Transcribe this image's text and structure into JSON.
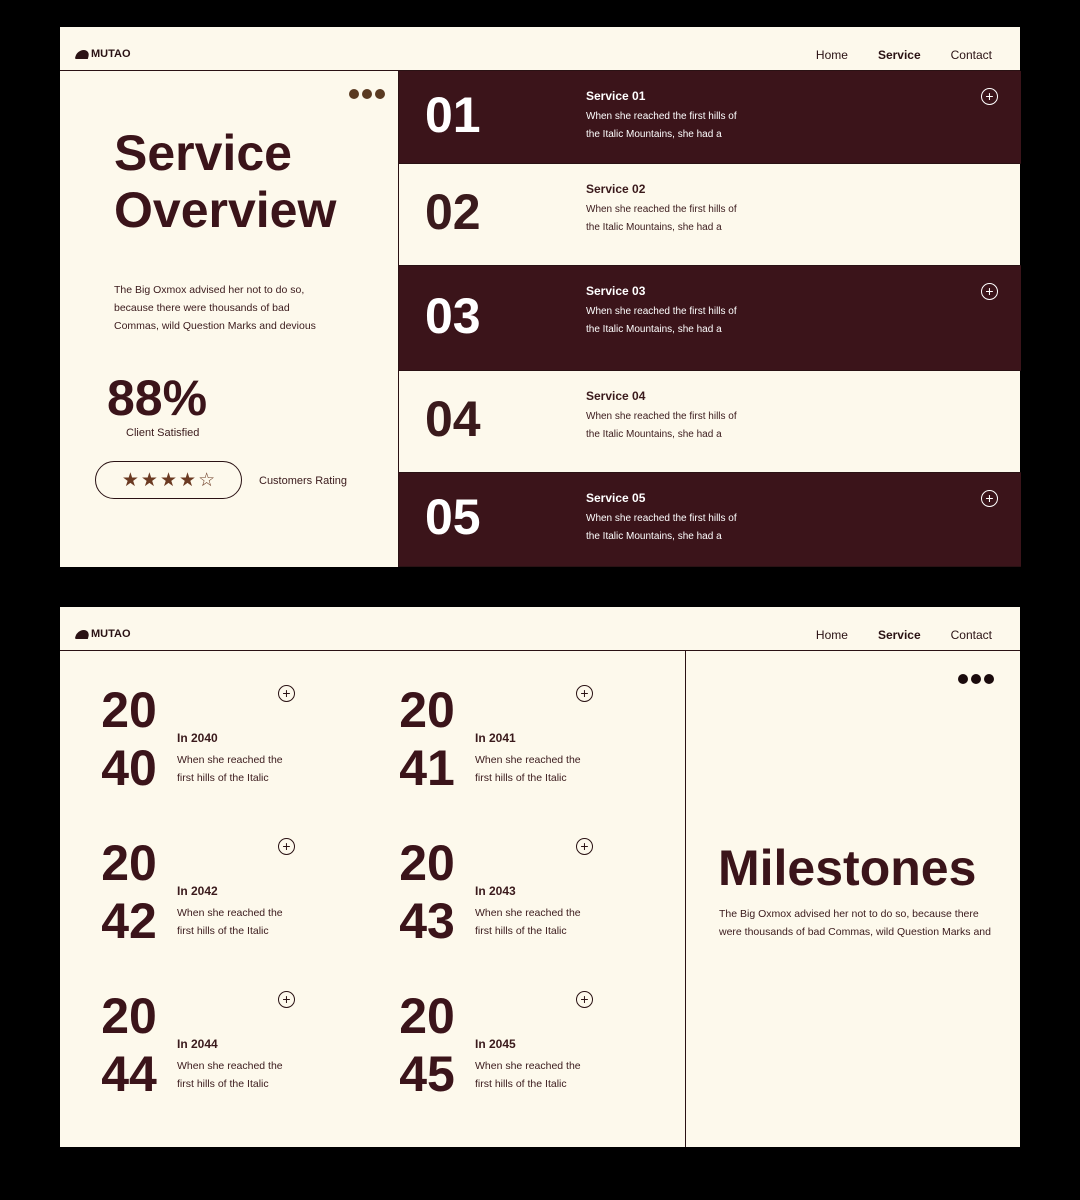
{
  "brand": "MUTAO",
  "nav": {
    "home": "Home",
    "service": "Service",
    "contact": "Contact",
    "active": "Service"
  },
  "colors": {
    "background": "#fdf9ec",
    "dark": "#3b141a",
    "star": "#6b3a22"
  },
  "overview": {
    "title_line1": "Service",
    "title_line2": "Overview",
    "desc_lines": [
      "The Big Oxmox advised her not to do so,",
      "because there were thousands of bad",
      "Commas, wild Question Marks and devious"
    ],
    "stat": "88%",
    "stat_label": "Client Satisfied",
    "rating": {
      "value": 4,
      "max": 5,
      "label": "Customers Rating"
    }
  },
  "services": [
    {
      "num": "01",
      "title": "Service 01",
      "line1": "When she reached the first hills of",
      "line2": "the Italic Mountains, she had a",
      "dark": true
    },
    {
      "num": "02",
      "title": "Service 02",
      "line1": "When she reached the first hills of",
      "line2": "the Italic Mountains, she had a",
      "dark": false
    },
    {
      "num": "03",
      "title": "Service 03",
      "line1": "When she reached the first hills of",
      "line2": "the Italic Mountains, she had a",
      "dark": true
    },
    {
      "num": "04",
      "title": "Service 04",
      "line1": "When she reached the first hills of",
      "line2": "the Italic Mountains, she had a",
      "dark": false
    },
    {
      "num": "05",
      "title": "Service 05",
      "line1": "When she reached the first hills of",
      "line2": "the Italic Mountains, she had a",
      "dark": true
    }
  ],
  "milestones": {
    "title": "Milestones",
    "desc_lines": [
      "The Big Oxmox advised her not to do so, because there",
      "were thousands of bad Commas, wild Question Marks and"
    ],
    "items": [
      {
        "y1": "20",
        "y2": "40",
        "title": "In 2040",
        "line1": "When she reached the",
        "line2": "first hills of the Italic"
      },
      {
        "y1": "20",
        "y2": "41",
        "title": "In 2041",
        "line1": "When she reached the",
        "line2": "first hills of the Italic"
      },
      {
        "y1": "20",
        "y2": "42",
        "title": "In 2042",
        "line1": "When she reached the",
        "line2": "first hills of the Italic"
      },
      {
        "y1": "20",
        "y2": "43",
        "title": "In 2043",
        "line1": "When she reached the",
        "line2": "first hills of the Italic"
      },
      {
        "y1": "20",
        "y2": "44",
        "title": "In 2044",
        "line1": "When she reached the",
        "line2": "first hills of the Italic"
      },
      {
        "y1": "20",
        "y2": "45",
        "title": "In 2045",
        "line1": "When she reached the",
        "line2": "first hills of the Italic"
      }
    ]
  }
}
